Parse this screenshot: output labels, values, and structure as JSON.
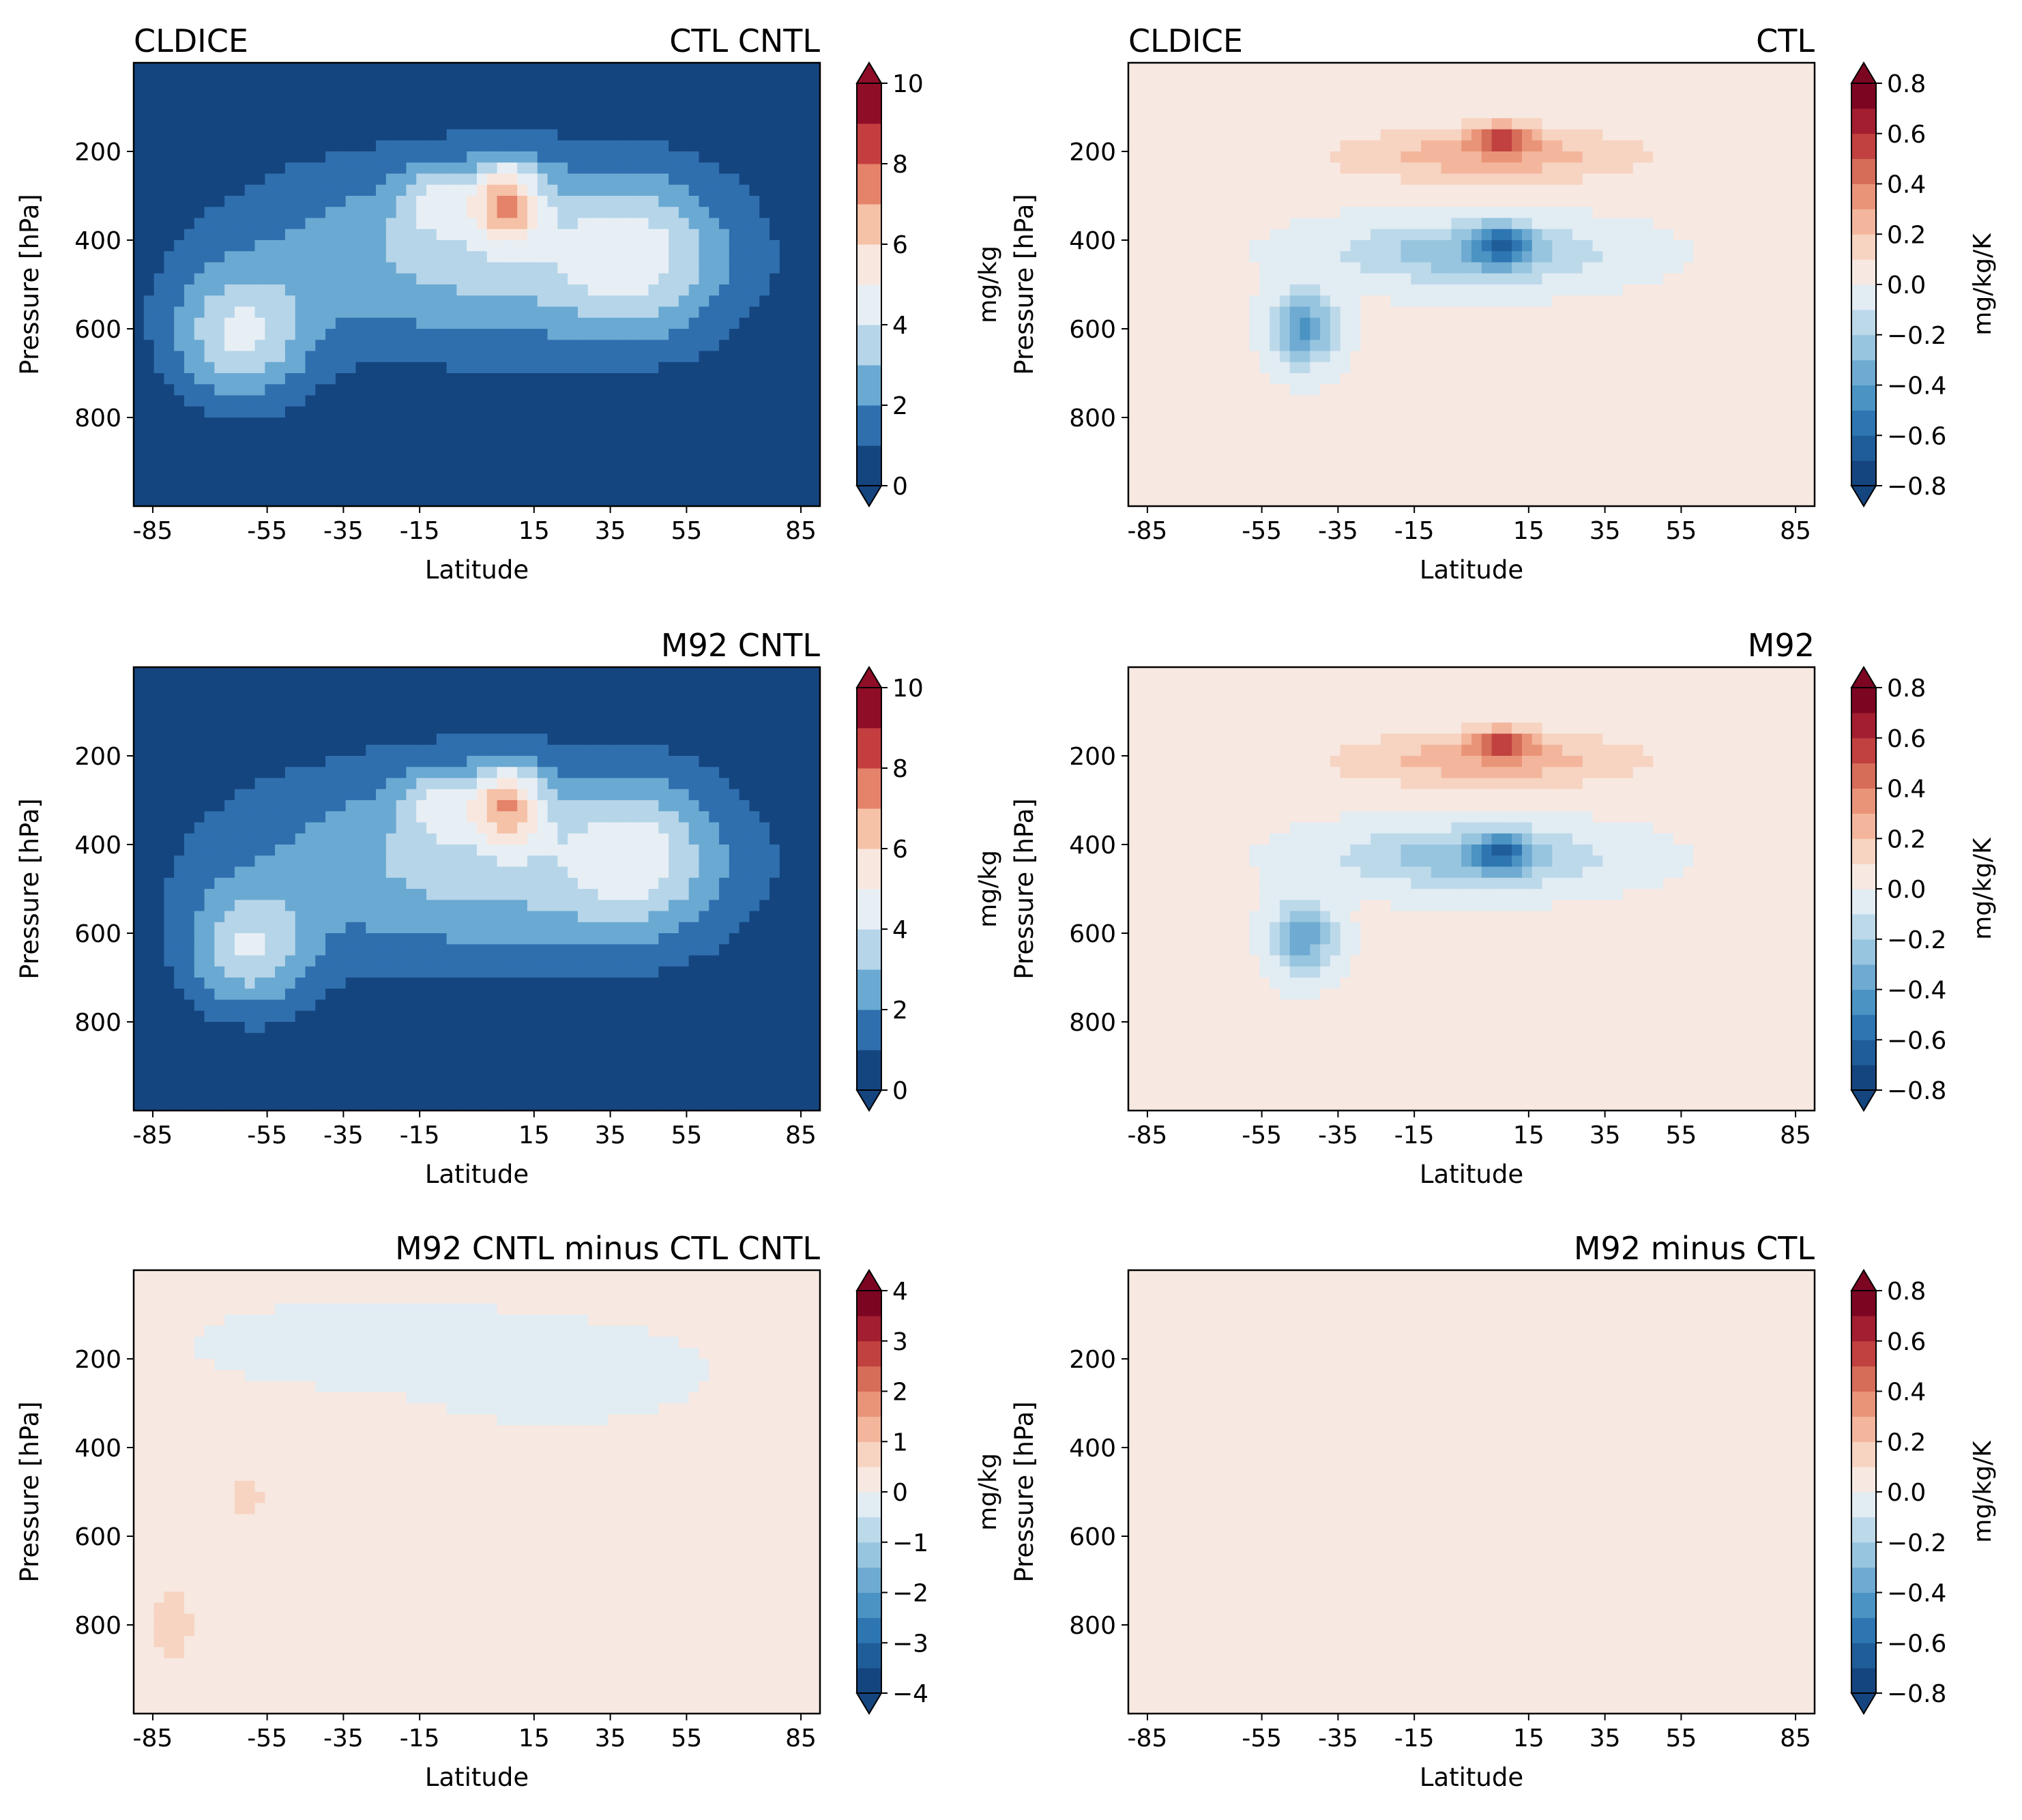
{
  "chart_data": [
    {
      "type": "contour",
      "panel": "top-left",
      "title_left": "CLDICE",
      "title_right": "CTL CNTL",
      "xlabel": "Latitude",
      "ylabel": "Pressure [hPa]",
      "xticks": [
        "-85",
        "-55",
        "-35",
        "-15",
        "15",
        "35",
        "55",
        "85"
      ],
      "yticks": [
        "200",
        "400",
        "600",
        "800"
      ],
      "ytick_values": [
        200,
        400,
        600,
        800
      ],
      "ylim": [
        1000,
        0
      ],
      "colorbar": {
        "label": "mg/kg",
        "ticks": [
          "0",
          "2",
          "4",
          "6",
          "8",
          "10"
        ],
        "range": [
          0,
          10
        ],
        "levels": 10,
        "extend": "both"
      },
      "features": [
        {
          "kind": "blob",
          "lat": 0,
          "p": 430,
          "dlat": 62,
          "dp": 220,
          "value": 3.2
        },
        {
          "kind": "blob",
          "lat": -62,
          "p": 620,
          "dlat": 18,
          "dp": 150,
          "value": 3.5
        },
        {
          "kind": "blob",
          "lat": 42,
          "p": 440,
          "dlat": 22,
          "dp": 180,
          "value": 2.6
        },
        {
          "kind": "blob",
          "lat": -10,
          "p": 310,
          "dlat": 10,
          "dp": 80,
          "value": 2.0
        },
        {
          "kind": "blob",
          "lat": 8,
          "p": 310,
          "dlat": 9,
          "dp": 90,
          "value": 4.5
        }
      ]
    },
    {
      "type": "contour",
      "panel": "top-right",
      "title_left": "CLDICE",
      "title_right": "CTL",
      "xlabel": "Latitude",
      "ylabel": "Pressure [hPa]",
      "xticks": [
        "-85",
        "-55",
        "-35",
        "-15",
        "15",
        "35",
        "55",
        "85"
      ],
      "yticks": [
        "200",
        "400",
        "600",
        "800"
      ],
      "ytick_values": [
        200,
        400,
        600,
        800
      ],
      "ylim": [
        1000,
        0
      ],
      "colorbar": {
        "label": "mg/kg/K",
        "ticks": [
          "0.8",
          "0.6",
          "0.4",
          "0.2",
          "0.0",
          "−0.2",
          "−0.4",
          "−0.6",
          "−0.8"
        ],
        "range": [
          -0.8,
          0.8
        ],
        "levels": 16,
        "extend": "both"
      },
      "features": [
        {
          "kind": "blob",
          "lat": 5,
          "p": 210,
          "dlat": 40,
          "dp": 60,
          "value": 0.25
        },
        {
          "kind": "blob",
          "lat": 8,
          "p": 170,
          "dlat": 8,
          "dp": 30,
          "value": 0.45
        },
        {
          "kind": "blob",
          "lat": 0,
          "p": 430,
          "dlat": 35,
          "dp": 70,
          "value": -0.3
        },
        {
          "kind": "blob",
          "lat": 8,
          "p": 410,
          "dlat": 7,
          "dp": 45,
          "value": -0.45
        },
        {
          "kind": "blob",
          "lat": -44,
          "p": 600,
          "dlat": 8,
          "dp": 80,
          "value": -0.45
        }
      ]
    },
    {
      "type": "contour",
      "panel": "middle-left",
      "title_left": "",
      "title_right": "M92 CNTL",
      "xlabel": "Latitude",
      "ylabel": "Pressure [hPa]",
      "xticks": [
        "-85",
        "-55",
        "-35",
        "-15",
        "15",
        "35",
        "55",
        "85"
      ],
      "yticks": [
        "200",
        "400",
        "600",
        "800"
      ],
      "ytick_values": [
        200,
        400,
        600,
        800
      ],
      "ylim": [
        1000,
        0
      ],
      "colorbar": {
        "label": "mg/kg",
        "ticks": [
          "0",
          "2",
          "4",
          "6",
          "8",
          "10"
        ],
        "range": [
          0,
          10
        ],
        "levels": 10,
        "extend": "both"
      },
      "features": [
        {
          "kind": "blob",
          "lat": 0,
          "p": 440,
          "dlat": 64,
          "dp": 230,
          "value": 3.2
        },
        {
          "kind": "blob",
          "lat": -60,
          "p": 640,
          "dlat": 16,
          "dp": 140,
          "value": 3.3
        },
        {
          "kind": "blob",
          "lat": 42,
          "p": 430,
          "dlat": 20,
          "dp": 170,
          "value": 2.6
        },
        {
          "kind": "blob",
          "lat": -10,
          "p": 310,
          "dlat": 10,
          "dp": 80,
          "value": 2.0
        },
        {
          "kind": "blob",
          "lat": 8,
          "p": 310,
          "dlat": 9,
          "dp": 90,
          "value": 4.5
        }
      ]
    },
    {
      "type": "contour",
      "panel": "middle-right",
      "title_left": "",
      "title_right": "M92",
      "xlabel": "Latitude",
      "ylabel": "Pressure [hPa]",
      "xticks": [
        "-85",
        "-55",
        "-35",
        "-15",
        "15",
        "35",
        "55",
        "85"
      ],
      "yticks": [
        "200",
        "400",
        "600",
        "800"
      ],
      "ytick_values": [
        200,
        400,
        600,
        800
      ],
      "ylim": [
        1000,
        0
      ],
      "colorbar": {
        "label": "mg/kg/K",
        "ticks": [
          "0.8",
          "0.6",
          "0.4",
          "0.2",
          "0.0",
          "−0.2",
          "−0.4",
          "−0.6",
          "−0.8"
        ],
        "range": [
          -0.8,
          0.8
        ],
        "levels": 16,
        "extend": "both"
      },
      "features": [
        {
          "kind": "blob",
          "lat": 5,
          "p": 210,
          "dlat": 40,
          "dp": 60,
          "value": 0.25
        },
        {
          "kind": "blob",
          "lat": 8,
          "p": 170,
          "dlat": 8,
          "dp": 30,
          "value": 0.45
        },
        {
          "kind": "blob",
          "lat": 0,
          "p": 430,
          "dlat": 35,
          "dp": 70,
          "value": -0.3
        },
        {
          "kind": "blob",
          "lat": 8,
          "p": 420,
          "dlat": 7,
          "dp": 45,
          "value": -0.4
        },
        {
          "kind": "blob",
          "lat": -44,
          "p": 610,
          "dlat": 8,
          "dp": 80,
          "value": -0.4
        }
      ]
    },
    {
      "type": "contour",
      "panel": "bottom-left",
      "title_left": "",
      "title_right": "M92 CNTL minus CTL CNTL",
      "xlabel": "Latitude",
      "ylabel": "Pressure [hPa]",
      "xticks": [
        "-85",
        "-55",
        "-35",
        "-15",
        "15",
        "35",
        "55",
        "85"
      ],
      "yticks": [
        "200",
        "400",
        "600",
        "800"
      ],
      "ytick_values": [
        200,
        400,
        600,
        800
      ],
      "ylim": [
        1000,
        0
      ],
      "colorbar": {
        "label": "mg/kg",
        "ticks": [
          "4",
          "3",
          "2",
          "1",
          "0",
          "−1",
          "−2",
          "−3",
          "−4"
        ],
        "range": [
          -4,
          4
        ],
        "levels": 16,
        "extend": "both"
      },
      "features": [
        {
          "kind": "blob",
          "lat": -80,
          "p": 800,
          "dlat": 6,
          "dp": 90,
          "value": 0.9
        },
        {
          "kind": "blob",
          "lat": -60,
          "p": 510,
          "dlat": 5,
          "dp": 50,
          "value": 0.8
        },
        {
          "kind": "blob",
          "lat": -25,
          "p": 170,
          "dlat": 30,
          "dp": 60,
          "value": -0.3
        },
        {
          "kind": "blob",
          "lat": 20,
          "p": 230,
          "dlat": 25,
          "dp": 70,
          "value": -0.3
        }
      ]
    },
    {
      "type": "contour",
      "panel": "bottom-right",
      "title_left": "",
      "title_right": "M92 minus CTL",
      "xlabel": "Latitude",
      "ylabel": "Pressure [hPa]",
      "xticks": [
        "-85",
        "-55",
        "-35",
        "-15",
        "15",
        "35",
        "55",
        "85"
      ],
      "yticks": [
        "200",
        "400",
        "600",
        "800"
      ],
      "ytick_values": [
        200,
        400,
        600,
        800
      ],
      "ylim": [
        1000,
        0
      ],
      "colorbar": {
        "label": "mg/kg/K",
        "ticks": [
          "0.8",
          "0.6",
          "0.4",
          "0.2",
          "0.0",
          "−0.2",
          "−0.4",
          "−0.6",
          "−0.8"
        ],
        "range": [
          -0.8,
          0.8
        ],
        "levels": 16,
        "extend": "both"
      },
      "features": [
        {
          "kind": "blob",
          "lat": 15,
          "p": 400,
          "dlat": 35,
          "dp": 120,
          "value": 0.05
        },
        {
          "kind": "blob",
          "lat": -40,
          "p": 750,
          "dlat": 25,
          "dp": 150,
          "value": 0.05
        }
      ]
    }
  ],
  "colors": {
    "background": "#ffffff",
    "axis": "#000000"
  }
}
